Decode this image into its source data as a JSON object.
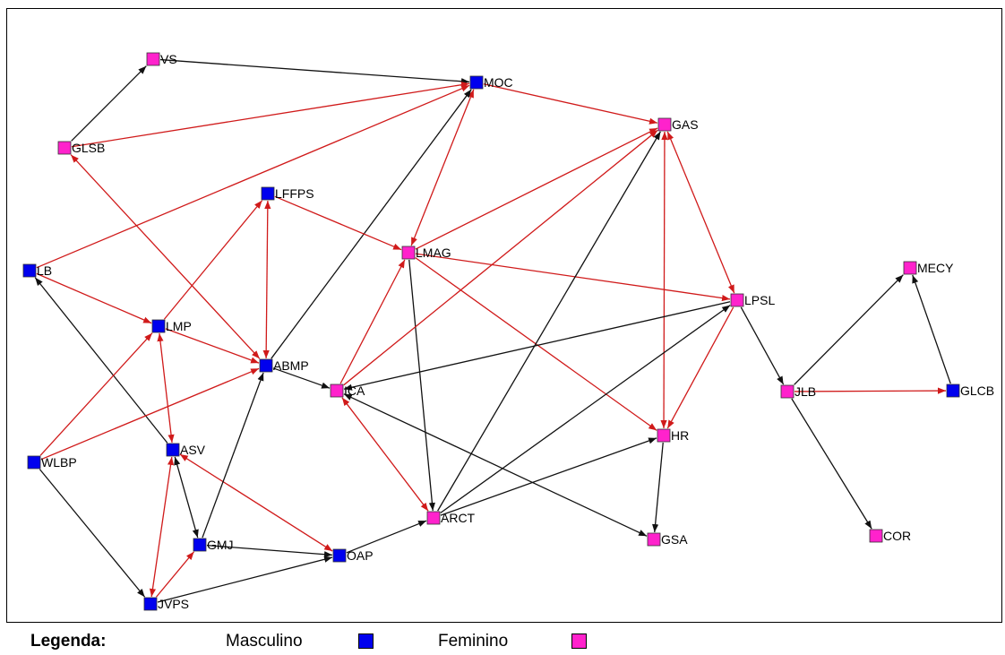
{
  "colors": {
    "male": "#0000ee",
    "female": "#ff22cc",
    "edge_black": "#111111",
    "edge_red": "#d01a1a"
  },
  "legend": {
    "title": "Legenda:",
    "male": "Masculino",
    "female": "Feminino"
  },
  "nodes": [
    {
      "id": "VS",
      "label": "VS",
      "gender": "female"
    },
    {
      "id": "MOC",
      "label": "MOC",
      "gender": "male"
    },
    {
      "id": "GAS",
      "label": "GAS",
      "gender": "female"
    },
    {
      "id": "GLSB",
      "label": "GLSB",
      "gender": "female"
    },
    {
      "id": "LFFPS",
      "label": "LFFPS",
      "gender": "male"
    },
    {
      "id": "LMAG",
      "label": "LMAG",
      "gender": "female"
    },
    {
      "id": "LB",
      "label": "LB",
      "gender": "male"
    },
    {
      "id": "MECY",
      "label": "MECY",
      "gender": "female"
    },
    {
      "id": "LPSL",
      "label": "LPSL",
      "gender": "female"
    },
    {
      "id": "LMP",
      "label": "LMP",
      "gender": "male"
    },
    {
      "id": "ABMP",
      "label": "ABMP",
      "gender": "male"
    },
    {
      "id": "ICA",
      "label": "ICA",
      "gender": "female"
    },
    {
      "id": "JLB",
      "label": "JLB",
      "gender": "female"
    },
    {
      "id": "GLCB",
      "label": "GLCB",
      "gender": "male"
    },
    {
      "id": "HR",
      "label": "HR",
      "gender": "female"
    },
    {
      "id": "ASV",
      "label": "ASV",
      "gender": "male"
    },
    {
      "id": "WLBP",
      "label": "WLBP",
      "gender": "male"
    },
    {
      "id": "ARCT",
      "label": "ARCT",
      "gender": "female"
    },
    {
      "id": "GSA",
      "label": "GSA",
      "gender": "female"
    },
    {
      "id": "COR",
      "label": "COR",
      "gender": "female"
    },
    {
      "id": "GMJ",
      "label": "GMJ",
      "gender": "male"
    },
    {
      "id": "OAP",
      "label": "OAP",
      "gender": "male"
    },
    {
      "id": "JVPS",
      "label": "JVPS",
      "gender": "male"
    }
  ],
  "edges": [
    {
      "from": "VS",
      "to": "MOC",
      "color": "black",
      "bidir": false
    },
    {
      "from": "GLSB",
      "to": "VS",
      "color": "black",
      "bidir": false
    },
    {
      "from": "GLSB",
      "to": "MOC",
      "color": "red",
      "bidir": false
    },
    {
      "from": "MOC",
      "to": "GAS",
      "color": "red",
      "bidir": false
    },
    {
      "from": "LB",
      "to": "MOC",
      "color": "red",
      "bidir": false
    },
    {
      "from": "LMAG",
      "to": "MOC",
      "color": "red",
      "bidir": true
    },
    {
      "from": "ABMP",
      "to": "MOC",
      "color": "black",
      "bidir": false
    },
    {
      "from": "GLSB",
      "to": "ABMP",
      "color": "red",
      "bidir": true
    },
    {
      "from": "LFFPS",
      "to": "LMAG",
      "color": "red",
      "bidir": false
    },
    {
      "from": "LFFPS",
      "to": "ABMP",
      "color": "red",
      "bidir": true
    },
    {
      "from": "LMP",
      "to": "LFFPS",
      "color": "red",
      "bidir": false
    },
    {
      "from": "LMAG",
      "to": "GAS",
      "color": "red",
      "bidir": false
    },
    {
      "from": "LMAG",
      "to": "LPSL",
      "color": "red",
      "bidir": false
    },
    {
      "from": "LMAG",
      "to": "HR",
      "color": "red",
      "bidir": false
    },
    {
      "from": "LMAG",
      "to": "ARCT",
      "color": "black",
      "bidir": false
    },
    {
      "from": "ICA",
      "to": "LMAG",
      "color": "red",
      "bidir": false
    },
    {
      "from": "ICA",
      "to": "GAS",
      "color": "red",
      "bidir": false
    },
    {
      "from": "ARCT",
      "to": "GAS",
      "color": "black",
      "bidir": false
    },
    {
      "from": "GAS",
      "to": "HR",
      "color": "red",
      "bidir": true
    },
    {
      "from": "GAS",
      "to": "LPSL",
      "color": "red",
      "bidir": true
    },
    {
      "from": "LPSL",
      "to": "ICA",
      "color": "black",
      "bidir": false
    },
    {
      "from": "LPSL",
      "to": "HR",
      "color": "red",
      "bidir": false
    },
    {
      "from": "LPSL",
      "to": "JLB",
      "color": "black",
      "bidir": false
    },
    {
      "from": "ARCT",
      "to": "LPSL",
      "color": "black",
      "bidir": false
    },
    {
      "from": "JLB",
      "to": "MECY",
      "color": "black",
      "bidir": false
    },
    {
      "from": "JLB",
      "to": "GLCB",
      "color": "red",
      "bidir": false
    },
    {
      "from": "GLCB",
      "to": "MECY",
      "color": "black",
      "bidir": false
    },
    {
      "from": "JLB",
      "to": "COR",
      "color": "black",
      "bidir": false
    },
    {
      "from": "HR",
      "to": "GSA",
      "color": "black",
      "bidir": false
    },
    {
      "from": "ICA",
      "to": "GSA",
      "color": "black",
      "bidir": true
    },
    {
      "from": "ICA",
      "to": "ARCT",
      "color": "red",
      "bidir": true
    },
    {
      "from": "ARCT",
      "to": "HR",
      "color": "black",
      "bidir": false
    },
    {
      "from": "OAP",
      "to": "ARCT",
      "color": "black",
      "bidir": false
    },
    {
      "from": "LB",
      "to": "LMP",
      "color": "red",
      "bidir": false
    },
    {
      "from": "ASV",
      "to": "LB",
      "color": "black",
      "bidir": false
    },
    {
      "from": "LMP",
      "to": "ABMP",
      "color": "red",
      "bidir": false
    },
    {
      "from": "ABMP",
      "to": "ICA",
      "color": "black",
      "bidir": false
    },
    {
      "from": "WLBP",
      "to": "LMP",
      "color": "red",
      "bidir": false
    },
    {
      "from": "WLBP",
      "to": "ABMP",
      "color": "red",
      "bidir": false
    },
    {
      "from": "LMP",
      "to": "ASV",
      "color": "red",
      "bidir": true
    },
    {
      "from": "ASV",
      "to": "OAP",
      "color": "red",
      "bidir": true
    },
    {
      "from": "ASV",
      "to": "GMJ",
      "color": "black",
      "bidir": true
    },
    {
      "from": "JVPS",
      "to": "ASV",
      "color": "red",
      "bidir": true
    },
    {
      "from": "GMJ",
      "to": "ABMP",
      "color": "black",
      "bidir": false
    },
    {
      "from": "GMJ",
      "to": "OAP",
      "color": "black",
      "bidir": false
    },
    {
      "from": "JVPS",
      "to": "GMJ",
      "color": "red",
      "bidir": false
    },
    {
      "from": "JVPS",
      "to": "OAP",
      "color": "black",
      "bidir": false
    },
    {
      "from": "WLBP",
      "to": "JVPS",
      "color": "black",
      "bidir": false
    }
  ]
}
